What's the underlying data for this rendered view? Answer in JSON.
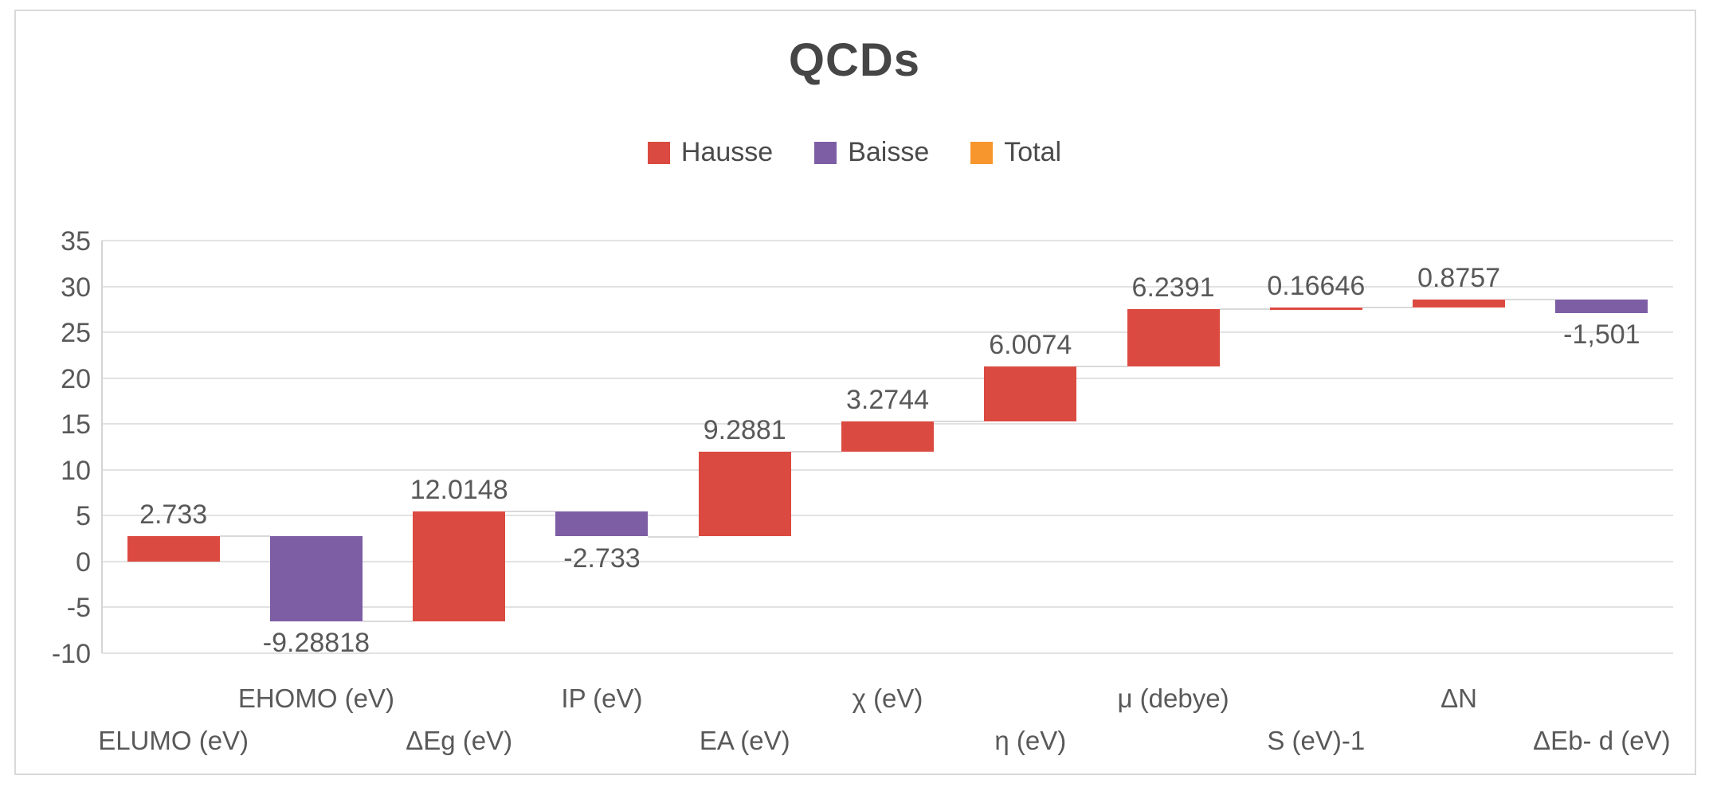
{
  "title": "QCDs",
  "legend": {
    "items": [
      {
        "label": "Hausse",
        "color": "#db4a40"
      },
      {
        "label": "Baisse",
        "color": "#7d5ea5"
      },
      {
        "label": "Total",
        "color": "#f7962c"
      }
    ]
  },
  "chart_data": {
    "type": "bar",
    "subtype": "waterfall",
    "title": "QCDs",
    "categories": [
      "ELUMO (eV)",
      "EHOMO (eV)",
      "ΔEg (eV)",
      "IP (eV)",
      "EA (eV)",
      "χ (eV)",
      "η (eV)",
      "μ (debye)",
      "S (eV)-1",
      "ΔN",
      "ΔEb- d (eV)"
    ],
    "values": [
      2.733,
      -9.28818,
      12.0148,
      -2.733,
      9.2881,
      3.2744,
      6.0074,
      6.2391,
      0.16646,
      0.8757,
      -1.501
    ],
    "data_labels": [
      "2.733",
      "-9.28818",
      "12.0148",
      "-2.733",
      "9.2881",
      "3.2744",
      "6.0074",
      "6.2391",
      "0.16646",
      "0.8757",
      "-1,501"
    ],
    "legend_entries": [
      "Hausse",
      "Baisse",
      "Total"
    ],
    "legend_position": "top",
    "y_ticks": [
      35,
      30,
      25,
      20,
      15,
      10,
      5,
      0,
      -5,
      -10
    ],
    "ylim": [
      -10,
      35
    ],
    "xlabel": "",
    "ylabel": "",
    "grid": true,
    "colors": {
      "increase": "#db4a40",
      "decrease": "#7d5ea5",
      "total": "#f7962c",
      "grid_line": "#e2e2e2",
      "connector": "#d9d9d9",
      "text": "#595959",
      "title_text": "#464646"
    }
  }
}
